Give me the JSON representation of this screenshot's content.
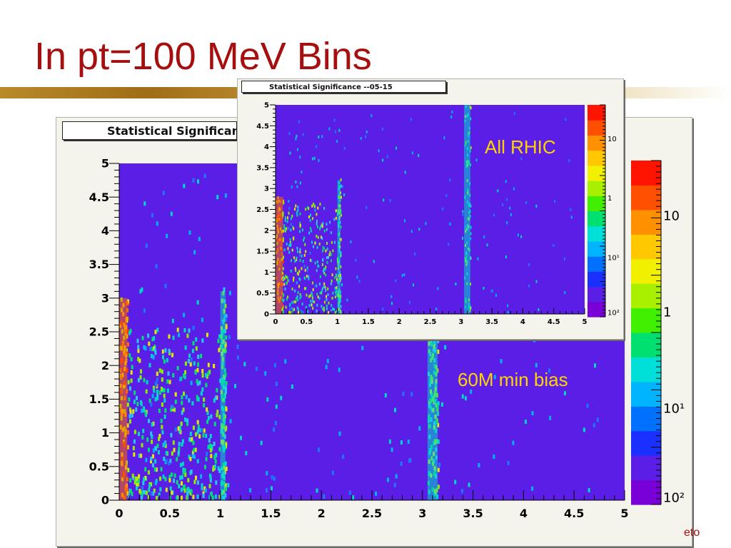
{
  "slide": {
    "title": "In pt=100 MeV Bins",
    "footer": "eto"
  },
  "chart_data": [
    {
      "type": "heatmap",
      "title": "Statistical Significance --05-15",
      "annotation": "60M min bias",
      "xlim": [
        0,
        5
      ],
      "ylim": [
        0,
        5
      ],
      "x_ticks": [
        "0",
        "0.5",
        "1",
        "1.5",
        "2",
        "2.5",
        "3",
        "3.5",
        "4",
        "4.5",
        "5"
      ],
      "y_ticks": [
        "0",
        "0.5",
        "1",
        "1.5",
        "2",
        "2.5",
        "3",
        "3.5",
        "4",
        "4.5",
        "5"
      ],
      "z_scale": "log",
      "z_labels": [
        "10",
        "1",
        "10¹",
        "10²"
      ],
      "background_color": "#5a1ee6",
      "features": [
        {
          "label": "low-x band",
          "x": [
            0,
            0.08
          ],
          "y": [
            0,
            3.0
          ],
          "level": "high"
        },
        {
          "label": "dense cluster",
          "x": [
            0.08,
            1.05
          ],
          "y": [
            0,
            2.5
          ],
          "level": "medium"
        },
        {
          "label": "line near x=1",
          "x": [
            1.0,
            1.05
          ],
          "y": [
            0,
            3.1
          ],
          "level": "medium"
        },
        {
          "label": "line near x=3.1",
          "x": [
            3.05,
            3.15
          ],
          "y": [
            0,
            2.4
          ],
          "level": "medium"
        }
      ]
    },
    {
      "type": "heatmap",
      "title": "Statistical Significance --05-15",
      "annotation": "All RHIC",
      "xlim": [
        0,
        5
      ],
      "ylim": [
        0,
        5
      ],
      "x_ticks": [
        "0",
        "0.5",
        "1",
        "1.5",
        "2",
        "2.5",
        "3",
        "3.5",
        "4",
        "4.5",
        "5"
      ],
      "y_ticks": [
        "0",
        "0.5",
        "1",
        "1.5",
        "2",
        "2.5",
        "3",
        "3.5",
        "4",
        "4.5",
        "5"
      ],
      "z_scale": "log",
      "z_labels": [
        "10",
        "1",
        "10¹",
        "10²"
      ],
      "background_color": "#5a1ee6",
      "features": [
        {
          "label": "low-x band",
          "x": [
            0,
            0.12
          ],
          "y": [
            0,
            2.8
          ],
          "level": "high"
        },
        {
          "label": "dense cluster",
          "x": [
            0.1,
            1.05
          ],
          "y": [
            0,
            2.6
          ],
          "level": "medium"
        },
        {
          "label": "line near x=1",
          "x": [
            1.0,
            1.05
          ],
          "y": [
            0,
            3.2
          ],
          "level": "medium"
        },
        {
          "label": "line near x=3.1",
          "x": [
            3.05,
            3.15
          ],
          "y": [
            0,
            5.0
          ],
          "level": "medium"
        }
      ]
    }
  ]
}
